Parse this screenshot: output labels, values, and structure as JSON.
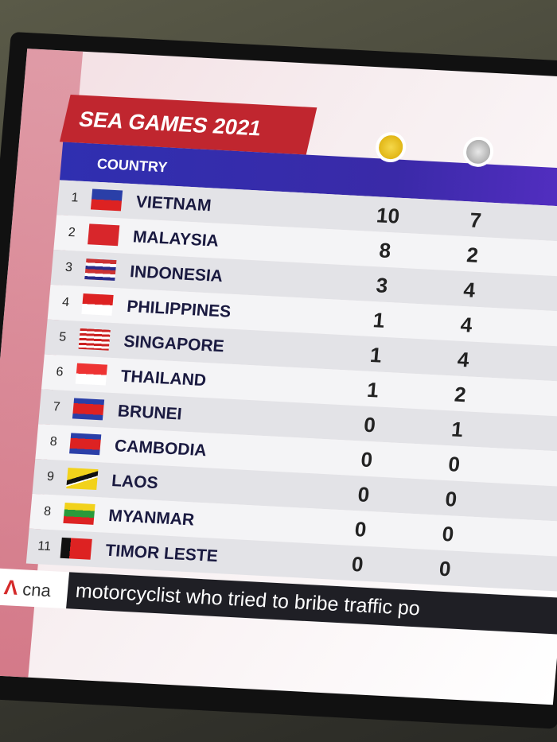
{
  "header": {
    "title": "SEA GAMES 2021",
    "column": "COUNTRY"
  },
  "table": {
    "rows": [
      {
        "rank": 1,
        "country": "VIETNAM",
        "gold": 10,
        "silver": 7
      },
      {
        "rank": 2,
        "country": "MALAYSIA",
        "gold": 8,
        "silver": 2
      },
      {
        "rank": 3,
        "country": "INDONESIA",
        "gold": 3,
        "silver": 4
      },
      {
        "rank": 4,
        "country": "PHILIPPINES",
        "gold": 1,
        "silver": 4
      },
      {
        "rank": 5,
        "country": "SINGAPORE",
        "gold": 1,
        "silver": 4
      },
      {
        "rank": 6,
        "country": "THAILAND",
        "gold": 1,
        "silver": 2
      },
      {
        "rank": 7,
        "country": "BRUNEI",
        "gold": 0,
        "silver": 1
      },
      {
        "rank": 8,
        "country": "CAMBODIA",
        "gold": 0,
        "silver": 0
      },
      {
        "rank": 9,
        "country": "LAOS",
        "gold": 0,
        "silver": 0
      },
      {
        "rank": 8,
        "country": "MYANMAR",
        "gold": 0,
        "silver": 0
      },
      {
        "rank": 11,
        "country": "TIMOR LESTE",
        "gold": 0,
        "silver": 0
      }
    ]
  },
  "ticker": {
    "logo": "cna",
    "text": "motorcyclist who tried to bribe traffic po"
  }
}
